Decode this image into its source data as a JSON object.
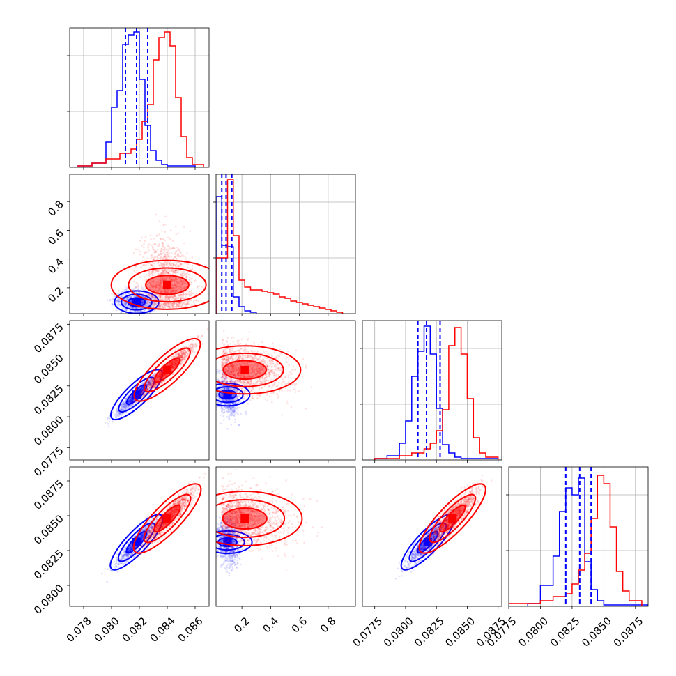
{
  "colors": {
    "series_a": "#0000ff",
    "series_b": "#ff0000",
    "grid": "#b0b0b0"
  },
  "chart_data": {
    "type": "corner",
    "grid": true,
    "params": [
      {
        "range": [
          0.077,
          0.087
        ],
        "ticks": [
          0.078,
          0.08,
          0.082,
          0.084,
          0.086
        ],
        "tick_labels": [
          "0.078",
          "0.080",
          "0.082",
          "0.084",
          "0.086"
        ]
      },
      {
        "range": [
          0.02,
          0.99
        ],
        "ticks": [
          0.2,
          0.4,
          0.6,
          0.8
        ],
        "tick_labels": [
          "0.2",
          "0.4",
          "0.6",
          "0.8"
        ]
      },
      {
        "range": [
          0.0765,
          0.0878
        ],
        "ticks": [
          0.0775,
          0.08,
          0.0825,
          0.085,
          0.0875
        ],
        "tick_labels": [
          "0.0775",
          "0.0800",
          "0.0825",
          "0.0850",
          "0.0875"
        ]
      },
      {
        "range": [
          0.0785,
          0.0885
        ],
        "ticks": [
          0.08,
          0.0825,
          0.085,
          0.0875
        ],
        "tick_labels": [
          "0.0800",
          "0.0825",
          "0.0850",
          "0.0875"
        ],
        "x_tick_labels": [
          "0.0775",
          "0.0800",
          "0.0825",
          "0.0850",
          "0.0875"
        ],
        "x_ticks": [
          0.0775,
          0.08,
          0.0825,
          0.085,
          0.0875
        ],
        "x_range": [
          0.0775,
          0.0885
        ]
      }
    ],
    "series": [
      {
        "color": "#0000ff",
        "quantiles": [
          [
            0.081,
            0.0818,
            0.0826
          ],
          [
            0.06,
            0.09,
            0.13
          ],
          [
            0.081,
            0.0817,
            0.0828
          ],
          [
            0.082,
            0.0831,
            0.084
          ]
        ],
        "means": [
          0.0818,
          0.1,
          0.0818,
          0.0831
        ],
        "sds": [
          0.0007,
          0.04,
          0.0008,
          0.0008
        ],
        "hist": [
          {
            "edges": [
              0.0776,
              0.0786,
              0.0796,
              0.08,
              0.0804,
              0.0808,
              0.0812,
              0.0816,
              0.082,
              0.0824,
              0.0828,
              0.0832,
              0.0836,
              0.084,
              0.086
            ],
            "counts": [
              0.01,
              0.03,
              0.18,
              0.43,
              0.55,
              0.88,
              0.95,
              0.97,
              0.63,
              0.3,
              0.12,
              0.05,
              0.02,
              0.01
            ]
          },
          {
            "edges": [
              0.02,
              0.06,
              0.1,
              0.14,
              0.18,
              0.22,
              0.26,
              0.3
            ],
            "counts": [
              0.84,
              0.49,
              0.48,
              0.12,
              0.05,
              0.02,
              0.01
            ]
          },
          {
            "edges": [
              0.0775,
              0.0785,
              0.0795,
              0.08,
              0.0805,
              0.081,
              0.0815,
              0.082,
              0.0825,
              0.083,
              0.0835,
              0.084,
              0.0845,
              0.0875
            ],
            "counts": [
              0.01,
              0.03,
              0.12,
              0.28,
              0.6,
              0.78,
              0.96,
              0.76,
              0.37,
              0.11,
              0.05,
              0.02,
              0.01
            ]
          },
          {
            "edges": [
              0.079,
              0.08,
              0.081,
              0.0815,
              0.082,
              0.0825,
              0.083,
              0.0835,
              0.084,
              0.0845,
              0.085,
              0.0885
            ],
            "counts": [
              0.02,
              0.15,
              0.36,
              0.68,
              0.85,
              0.8,
              0.92,
              0.32,
              0.12,
              0.04,
              0.01
            ]
          }
        ]
      },
      {
        "color": "#ff0000",
        "means": [
          0.084,
          0.22,
          0.0838,
          0.0848
        ],
        "sds": [
          0.0009,
          0.18,
          0.001,
          0.001
        ],
        "hist": [
          {
            "edges": [
              0.0776,
              0.0786,
              0.0796,
              0.0806,
              0.0814,
              0.0818,
              0.0822,
              0.0826,
              0.083,
              0.0834,
              0.0838,
              0.0842,
              0.0846,
              0.085,
              0.0854,
              0.0858,
              0.0866
            ],
            "counts": [
              0.01,
              0.03,
              0.06,
              0.1,
              0.13,
              0.2,
              0.33,
              0.45,
              0.77,
              0.93,
              0.97,
              0.87,
              0.5,
              0.22,
              0.07,
              0.02
            ]
          },
          {
            "edges": [
              0.02,
              0.1,
              0.14,
              0.18,
              0.22,
              0.26,
              0.3,
              0.34,
              0.38,
              0.42,
              0.46,
              0.5,
              0.54,
              0.58,
              0.62,
              0.66,
              0.7,
              0.74,
              0.78,
              0.82,
              0.86,
              0.9
            ],
            "counts": [
              0.4,
              0.96,
              0.56,
              0.24,
              0.19,
              0.17,
              0.17,
              0.16,
              0.15,
              0.14,
              0.12,
              0.11,
              0.09,
              0.08,
              0.07,
              0.06,
              0.05,
              0.04,
              0.03,
              0.02,
              0.01
            ]
          },
          {
            "edges": [
              0.0775,
              0.0795,
              0.0805,
              0.0815,
              0.082,
              0.0825,
              0.083,
              0.0835,
              0.084,
              0.0845,
              0.085,
              0.0855,
              0.086,
              0.0865,
              0.0875
            ],
            "counts": [
              0.01,
              0.03,
              0.05,
              0.08,
              0.12,
              0.21,
              0.36,
              0.82,
              0.95,
              0.76,
              0.44,
              0.16,
              0.05,
              0.02
            ]
          },
          {
            "edges": [
              0.0775,
              0.08,
              0.081,
              0.082,
              0.0825,
              0.083,
              0.0835,
              0.084,
              0.0845,
              0.085,
              0.0855,
              0.086,
              0.0865,
              0.087,
              0.088
            ],
            "counts": [
              0.02,
              0.04,
              0.07,
              0.09,
              0.16,
              0.26,
              0.38,
              0.63,
              0.94,
              0.88,
              0.57,
              0.25,
              0.11,
              0.04
            ]
          }
        ]
      }
    ]
  }
}
